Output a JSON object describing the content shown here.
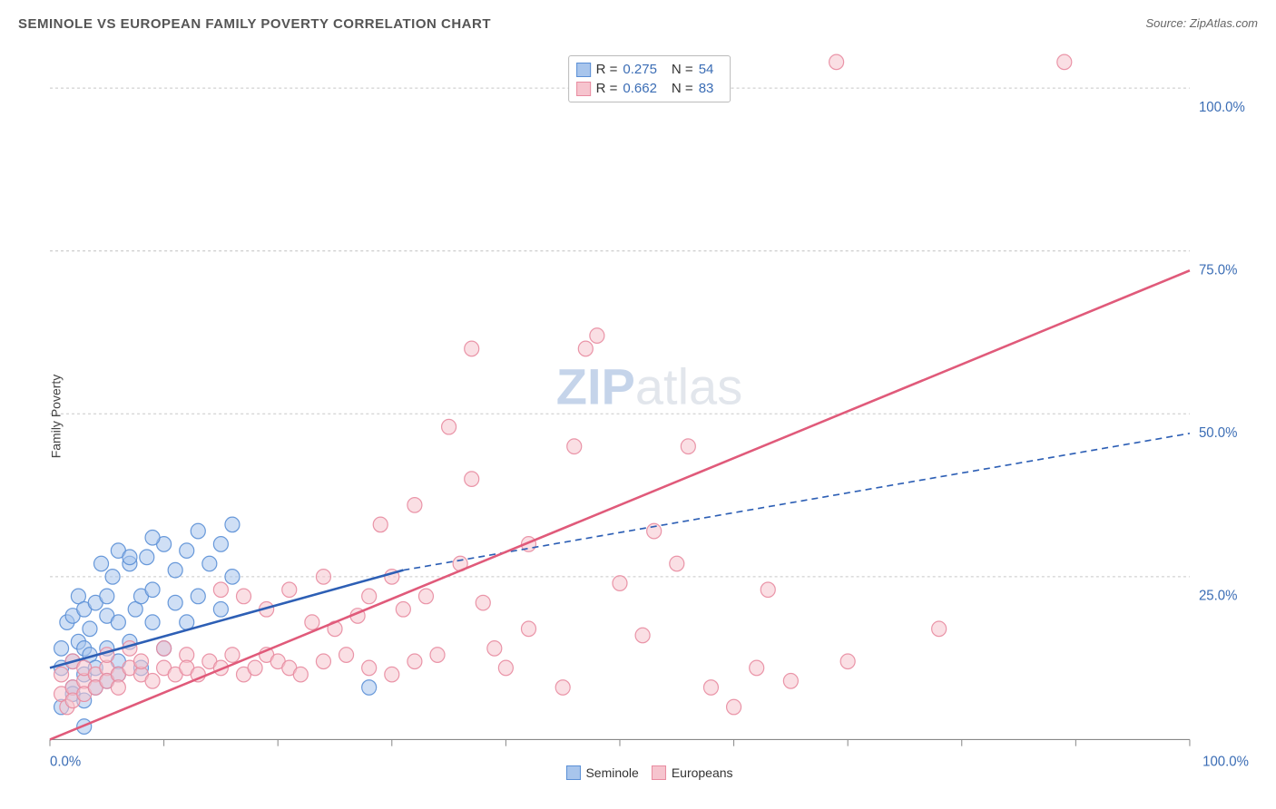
{
  "title": "SEMINOLE VS EUROPEAN FAMILY POVERTY CORRELATION CHART",
  "source": "Source: ZipAtlas.com",
  "ylabel": "Family Poverty",
  "watermark_zip": "ZIP",
  "watermark_atlas": "atlas",
  "chart": {
    "type": "scatter",
    "xlim": [
      0,
      100
    ],
    "ylim": [
      0,
      105
    ],
    "x_ticks": [
      0,
      10,
      20,
      30,
      40,
      50,
      60,
      70,
      80,
      90,
      100
    ],
    "y_ticks": [
      25,
      50,
      75,
      100
    ],
    "x_tick_labels": {
      "0": "0.0%",
      "100": "100.0%"
    },
    "y_tick_labels": {
      "25": "25.0%",
      "50": "50.0%",
      "75": "75.0%",
      "100": "100.0%"
    },
    "grid_color": "#c8c8c8",
    "axis_color": "#888888",
    "background_color": "#ffffff",
    "label_color": "#3b6db5",
    "marker_radius": 8,
    "marker_opacity": 0.55,
    "series": [
      {
        "id": "seminole",
        "label": "Seminole",
        "color_fill": "#a8c5ec",
        "color_stroke": "#5a8fd6",
        "R": "0.275",
        "N": "54",
        "trend": {
          "x1": 0,
          "y1": 11,
          "x2": 31,
          "y2": 26,
          "dash_x2": 100,
          "dash_y2": 47,
          "color": "#2d5fb5",
          "width": 2.5
        },
        "points": [
          [
            1,
            11
          ],
          [
            1,
            14
          ],
          [
            1.5,
            18
          ],
          [
            2,
            8
          ],
          [
            2,
            12
          ],
          [
            2,
            19
          ],
          [
            2.5,
            22
          ],
          [
            2.5,
            15
          ],
          [
            3,
            20
          ],
          [
            3,
            10
          ],
          [
            3,
            14
          ],
          [
            3.5,
            13
          ],
          [
            3.5,
            17
          ],
          [
            4,
            11
          ],
          [
            4,
            21
          ],
          [
            4.5,
            27
          ],
          [
            5,
            14
          ],
          [
            5,
            19
          ],
          [
            5,
            22
          ],
          [
            5.5,
            25
          ],
          [
            6,
            12
          ],
          [
            6,
            18
          ],
          [
            6,
            29
          ],
          [
            7,
            15
          ],
          [
            7,
            27
          ],
          [
            7.5,
            20
          ],
          [
            8,
            11
          ],
          [
            8,
            22
          ],
          [
            8.5,
            28
          ],
          [
            9,
            18
          ],
          [
            9,
            23
          ],
          [
            10,
            14
          ],
          [
            10,
            30
          ],
          [
            11,
            21
          ],
          [
            11,
            26
          ],
          [
            12,
            18
          ],
          [
            12,
            29
          ],
          [
            13,
            22
          ],
          [
            13,
            32
          ],
          [
            14,
            27
          ],
          [
            15,
            20
          ],
          [
            15,
            30
          ],
          [
            16,
            25
          ],
          [
            16,
            33
          ],
          [
            1,
            5
          ],
          [
            2,
            7
          ],
          [
            4,
            8
          ],
          [
            6,
            10
          ],
          [
            3,
            6
          ],
          [
            5,
            9
          ],
          [
            28,
            8
          ],
          [
            3,
            2
          ],
          [
            7,
            28
          ],
          [
            9,
            31
          ]
        ]
      },
      {
        "id": "europeans",
        "label": "Europeans",
        "color_fill": "#f6c4ce",
        "color_stroke": "#e88ba0",
        "R": "0.662",
        "N": "83",
        "trend": {
          "x1": 0,
          "y1": 0,
          "x2": 100,
          "y2": 72,
          "color": "#e05a7a",
          "width": 2.5
        },
        "points": [
          [
            1,
            7
          ],
          [
            1,
            10
          ],
          [
            1.5,
            5
          ],
          [
            2,
            8
          ],
          [
            2,
            12
          ],
          [
            2,
            6
          ],
          [
            3,
            9
          ],
          [
            3,
            11
          ],
          [
            3,
            7
          ],
          [
            4,
            10
          ],
          [
            4,
            8
          ],
          [
            5,
            11
          ],
          [
            5,
            9
          ],
          [
            5,
            13
          ],
          [
            6,
            10
          ],
          [
            6,
            8
          ],
          [
            7,
            11
          ],
          [
            7,
            14
          ],
          [
            8,
            10
          ],
          [
            8,
            12
          ],
          [
            9,
            9
          ],
          [
            10,
            11
          ],
          [
            10,
            14
          ],
          [
            11,
            10
          ],
          [
            12,
            13
          ],
          [
            12,
            11
          ],
          [
            13,
            10
          ],
          [
            14,
            12
          ],
          [
            15,
            11
          ],
          [
            15,
            23
          ],
          [
            16,
            13
          ],
          [
            17,
            10
          ],
          [
            17,
            22
          ],
          [
            18,
            11
          ],
          [
            19,
            13
          ],
          [
            19,
            20
          ],
          [
            20,
            12
          ],
          [
            21,
            11
          ],
          [
            21,
            23
          ],
          [
            22,
            10
          ],
          [
            23,
            18
          ],
          [
            24,
            12
          ],
          [
            24,
            25
          ],
          [
            25,
            17
          ],
          [
            26,
            13
          ],
          [
            27,
            19
          ],
          [
            28,
            22
          ],
          [
            28,
            11
          ],
          [
            29,
            33
          ],
          [
            30,
            10
          ],
          [
            30,
            25
          ],
          [
            31,
            20
          ],
          [
            32,
            12
          ],
          [
            32,
            36
          ],
          [
            33,
            22
          ],
          [
            34,
            13
          ],
          [
            35,
            48
          ],
          [
            36,
            27
          ],
          [
            37,
            40
          ],
          [
            37,
            60
          ],
          [
            38,
            21
          ],
          [
            39,
            14
          ],
          [
            40,
            11
          ],
          [
            42,
            17
          ],
          [
            45,
            8
          ],
          [
            46,
            45
          ],
          [
            47,
            60
          ],
          [
            48,
            62
          ],
          [
            50,
            24
          ],
          [
            52,
            16
          ],
          [
            53,
            32
          ],
          [
            55,
            27
          ],
          [
            56,
            45
          ],
          [
            58,
            8
          ],
          [
            62,
            11
          ],
          [
            63,
            23
          ],
          [
            65,
            9
          ],
          [
            69,
            104
          ],
          [
            70,
            12
          ],
          [
            78,
            17
          ],
          [
            89,
            104
          ],
          [
            60,
            5
          ],
          [
            42,
            30
          ]
        ]
      }
    ]
  },
  "legend_top": [
    {
      "swatch_fill": "#a8c5ec",
      "swatch_stroke": "#5a8fd6",
      "R": "0.275",
      "N": "54"
    },
    {
      "swatch_fill": "#f6c4ce",
      "swatch_stroke": "#e88ba0",
      "R": "0.662",
      "N": "83"
    }
  ],
  "legend_bottom": [
    {
      "swatch_fill": "#a8c5ec",
      "swatch_stroke": "#5a8fd6",
      "label": "Seminole"
    },
    {
      "swatch_fill": "#f6c4ce",
      "swatch_stroke": "#e88ba0",
      "label": "Europeans"
    }
  ]
}
